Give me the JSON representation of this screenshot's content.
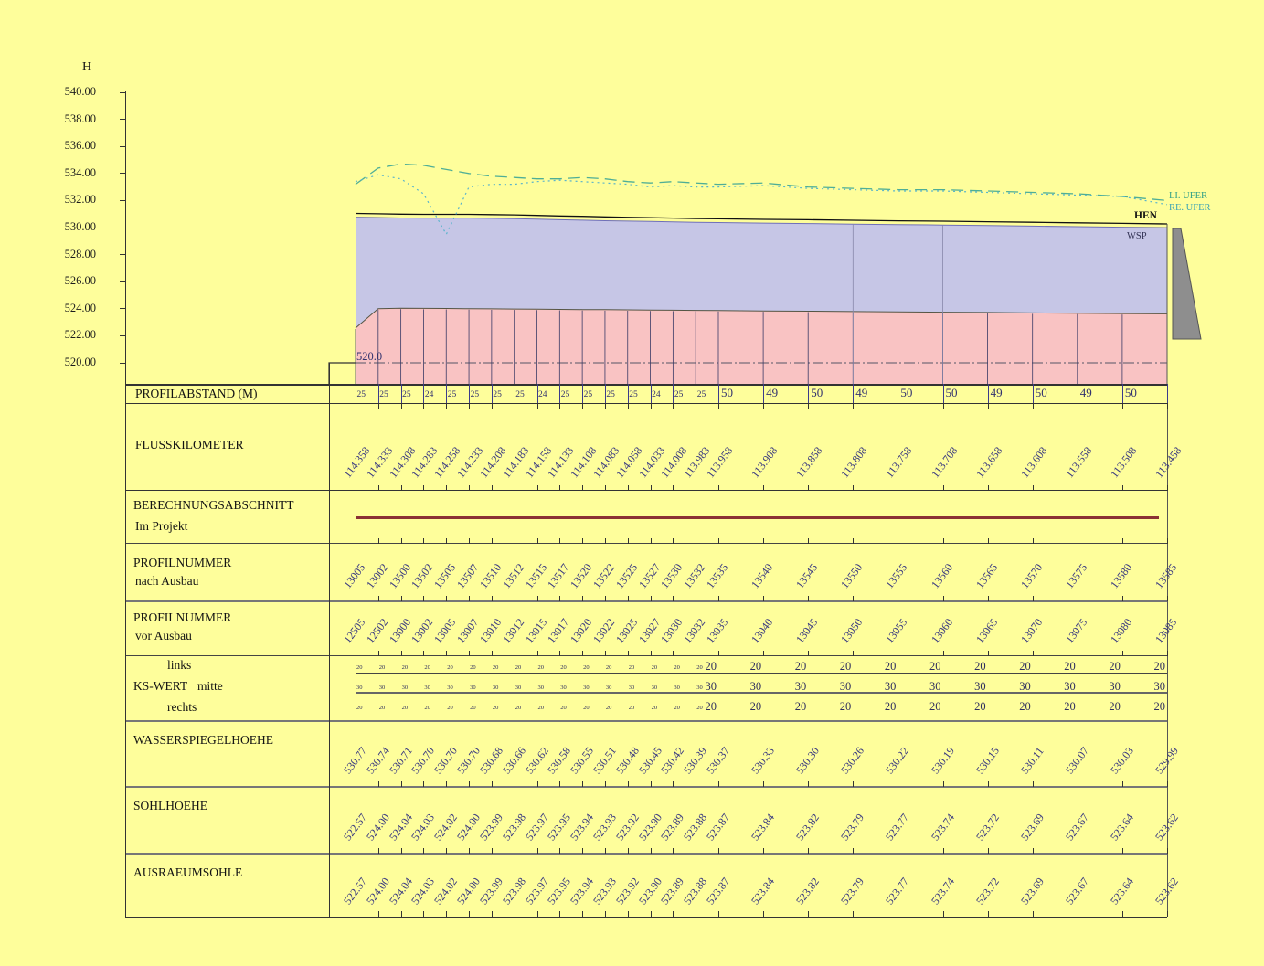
{
  "labels": {
    "axis_title": "H",
    "li_ufer": "LI. UFER",
    "re_ufer": "RE. UFER",
    "hen": "HEN",
    "wsp": "WSP",
    "datum": "520.0",
    "profilabstand": "PROFILABSTAND (M)",
    "flusskilometer": "FLUSSKILOMETER",
    "berechnungsabschnitt": "BERECHNUNGSABSCHNITT",
    "im_projekt": "Im Projekt",
    "profilnummer": "PROFILNUMMER",
    "nach_ausbau": "nach Ausbau",
    "vor_ausbau": "vor Ausbau",
    "ks_wert": "KS-WERT",
    "links": "links",
    "mitte": "mitte",
    "rechts": "rechts",
    "wasserspiegelhoehe": "WASSERSPIEGELHOEHE",
    "sohlhoehe": "SOHLHOEHE",
    "ausraeumsohle": "AUSRAEUMSOHLE"
  },
  "y_axis": {
    "tick_labels": [
      "540.00",
      "538.00",
      "536.00",
      "534.00",
      "532.00",
      "530.00",
      "528.00",
      "526.00",
      "524.00",
      "522.00",
      "520.00"
    ]
  },
  "colors": {
    "background": "#fefe9b",
    "water_fill": "#c6c6e6",
    "sole_fill": "#f9c3c3",
    "wedge_gray": "#8e8e8e",
    "berechnung_line": "#8b3135",
    "li_ufer_line": "#4fae96",
    "re_ufer_line": "#5ab4cc",
    "hen_line": "#111111",
    "number_text": "#32326e",
    "label_text": "#131313"
  },
  "chart_data": {
    "type": "line",
    "title": "",
    "ylabel": "H",
    "ylim": [
      518.5,
      541
    ],
    "x_axis_label": "FLUSSKILOMETER",
    "stations_km": [
      "114.358",
      "114.333",
      "114.308",
      "114.283",
      "114.258",
      "114.233",
      "114.208",
      "114.183",
      "114.158",
      "114.133",
      "114.108",
      "114.083",
      "114.058",
      "114.033",
      "114.008",
      "113.983",
      "113.958",
      "113.908",
      "113.858",
      "113.808",
      "113.758",
      "113.708",
      "113.658",
      "113.608",
      "113.558",
      "113.508",
      "113.458"
    ],
    "profilabstand_m": [
      "25",
      "25",
      "25",
      "24",
      "25",
      "25",
      "25",
      "25",
      "24",
      "25",
      "25",
      "25",
      "25",
      "24",
      "25",
      "25",
      "50",
      "49",
      "50",
      "49",
      "50",
      "50",
      "49",
      "50",
      "49",
      "50"
    ],
    "profilnummer_nach_ausbau": [
      "13005",
      "13002",
      "13500",
      "13502",
      "13505",
      "13507",
      "13510",
      "13512",
      "13515",
      "13517",
      "13520",
      "13522",
      "13525",
      "13527",
      "13530",
      "13532",
      "13535",
      "13540",
      "13545",
      "13550",
      "13555",
      "13560",
      "13565",
      "13570",
      "13575",
      "13580",
      "13585"
    ],
    "profilnummer_vor_ausbau": [
      "12505",
      "12502",
      "13000",
      "13002",
      "13005",
      "13007",
      "13010",
      "13012",
      "13015",
      "13017",
      "13020",
      "13022",
      "13025",
      "13027",
      "13030",
      "13032",
      "13035",
      "13040",
      "13045",
      "13050",
      "13055",
      "13060",
      "13065",
      "13070",
      "13075",
      "13080",
      "13085"
    ],
    "ks_wert": {
      "links": [
        "20",
        "20",
        "20",
        "20",
        "20",
        "20",
        "20",
        "20",
        "20",
        "20",
        "20",
        "20",
        "20",
        "20",
        "20",
        "20",
        "20",
        "20",
        "20",
        "20",
        "20",
        "20",
        "20",
        "20",
        "20",
        "20",
        "20"
      ],
      "mitte": [
        "30",
        "30",
        "30",
        "30",
        "30",
        "30",
        "30",
        "30",
        "30",
        "30",
        "30",
        "30",
        "30",
        "30",
        "30",
        "30",
        "30",
        "30",
        "30",
        "30",
        "30",
        "30",
        "30",
        "30",
        "30",
        "30",
        "30"
      ],
      "rechts": [
        "20",
        "20",
        "20",
        "20",
        "20",
        "20",
        "20",
        "20",
        "20",
        "20",
        "20",
        "20",
        "20",
        "20",
        "20",
        "20",
        "20",
        "20",
        "20",
        "20",
        "20",
        "20",
        "20",
        "20",
        "20",
        "20",
        "20"
      ]
    },
    "series": [
      {
        "name": "WASSERSPIEGELHOEHE (WSP)",
        "values": [
          "530.77",
          "530.74",
          "530.71",
          "530.70",
          "530.70",
          "530.70",
          "530.68",
          "530.66",
          "530.62",
          "530.58",
          "530.55",
          "530.51",
          "530.48",
          "530.45",
          "530.42",
          "530.39",
          "530.37",
          "530.33",
          "530.30",
          "530.26",
          "530.22",
          "530.19",
          "530.15",
          "530.11",
          "530.07",
          "530.03",
          "529.99"
        ]
      },
      {
        "name": "HEN",
        "values": [
          "531.05",
          "531.02",
          "530.99",
          "530.98",
          "530.98",
          "530.98",
          "530.96",
          "530.94",
          "530.90",
          "530.86",
          "530.83",
          "530.79",
          "530.76",
          "530.73",
          "530.70",
          "530.67",
          "530.65",
          "530.61",
          "530.58",
          "530.54",
          "530.50",
          "530.47",
          "530.43",
          "530.39",
          "530.35",
          "530.31",
          "530.27"
        ]
      },
      {
        "name": "SOHLHOEHE",
        "values": [
          "522.57",
          "524.00",
          "524.04",
          "524.03",
          "524.02",
          "524.00",
          "523.99",
          "523.98",
          "523.97",
          "523.95",
          "523.94",
          "523.93",
          "523.92",
          "523.90",
          "523.89",
          "523.88",
          "523.87",
          "523.84",
          "523.82",
          "523.79",
          "523.77",
          "523.74",
          "523.72",
          "523.69",
          "523.67",
          "523.64",
          "523.62"
        ]
      },
      {
        "name": "AUSRAEUMSOHLE",
        "values": [
          "522.57",
          "524.00",
          "524.04",
          "524.03",
          "524.02",
          "524.00",
          "523.99",
          "523.98",
          "523.97",
          "523.95",
          "523.94",
          "523.93",
          "523.92",
          "523.90",
          "523.89",
          "523.88",
          "523.87",
          "523.84",
          "523.82",
          "523.79",
          "523.77",
          "523.74",
          "523.72",
          "523.69",
          "523.67",
          "523.64",
          "523.62"
        ]
      },
      {
        "name": "LI. UFER (estimated)",
        "values": [
          533.2,
          534.4,
          534.7,
          534.6,
          534.3,
          534.0,
          533.8,
          533.7,
          533.6,
          533.6,
          533.7,
          533.6,
          533.4,
          533.3,
          533.4,
          533.3,
          533.2,
          533.3,
          533.0,
          532.9,
          532.8,
          532.8,
          532.7,
          532.6,
          532.5,
          532.3,
          532.0
        ]
      },
      {
        "name": "RE. UFER (estimated)",
        "values": [
          533.4,
          533.9,
          533.6,
          532.5,
          529.5,
          533.0,
          533.2,
          533.2,
          533.4,
          533.5,
          533.4,
          533.3,
          533.2,
          533.0,
          533.1,
          533.0,
          533.0,
          533.1,
          532.9,
          532.8,
          532.7,
          532.7,
          532.6,
          532.5,
          532.4,
          532.3,
          531.7
        ]
      }
    ]
  }
}
